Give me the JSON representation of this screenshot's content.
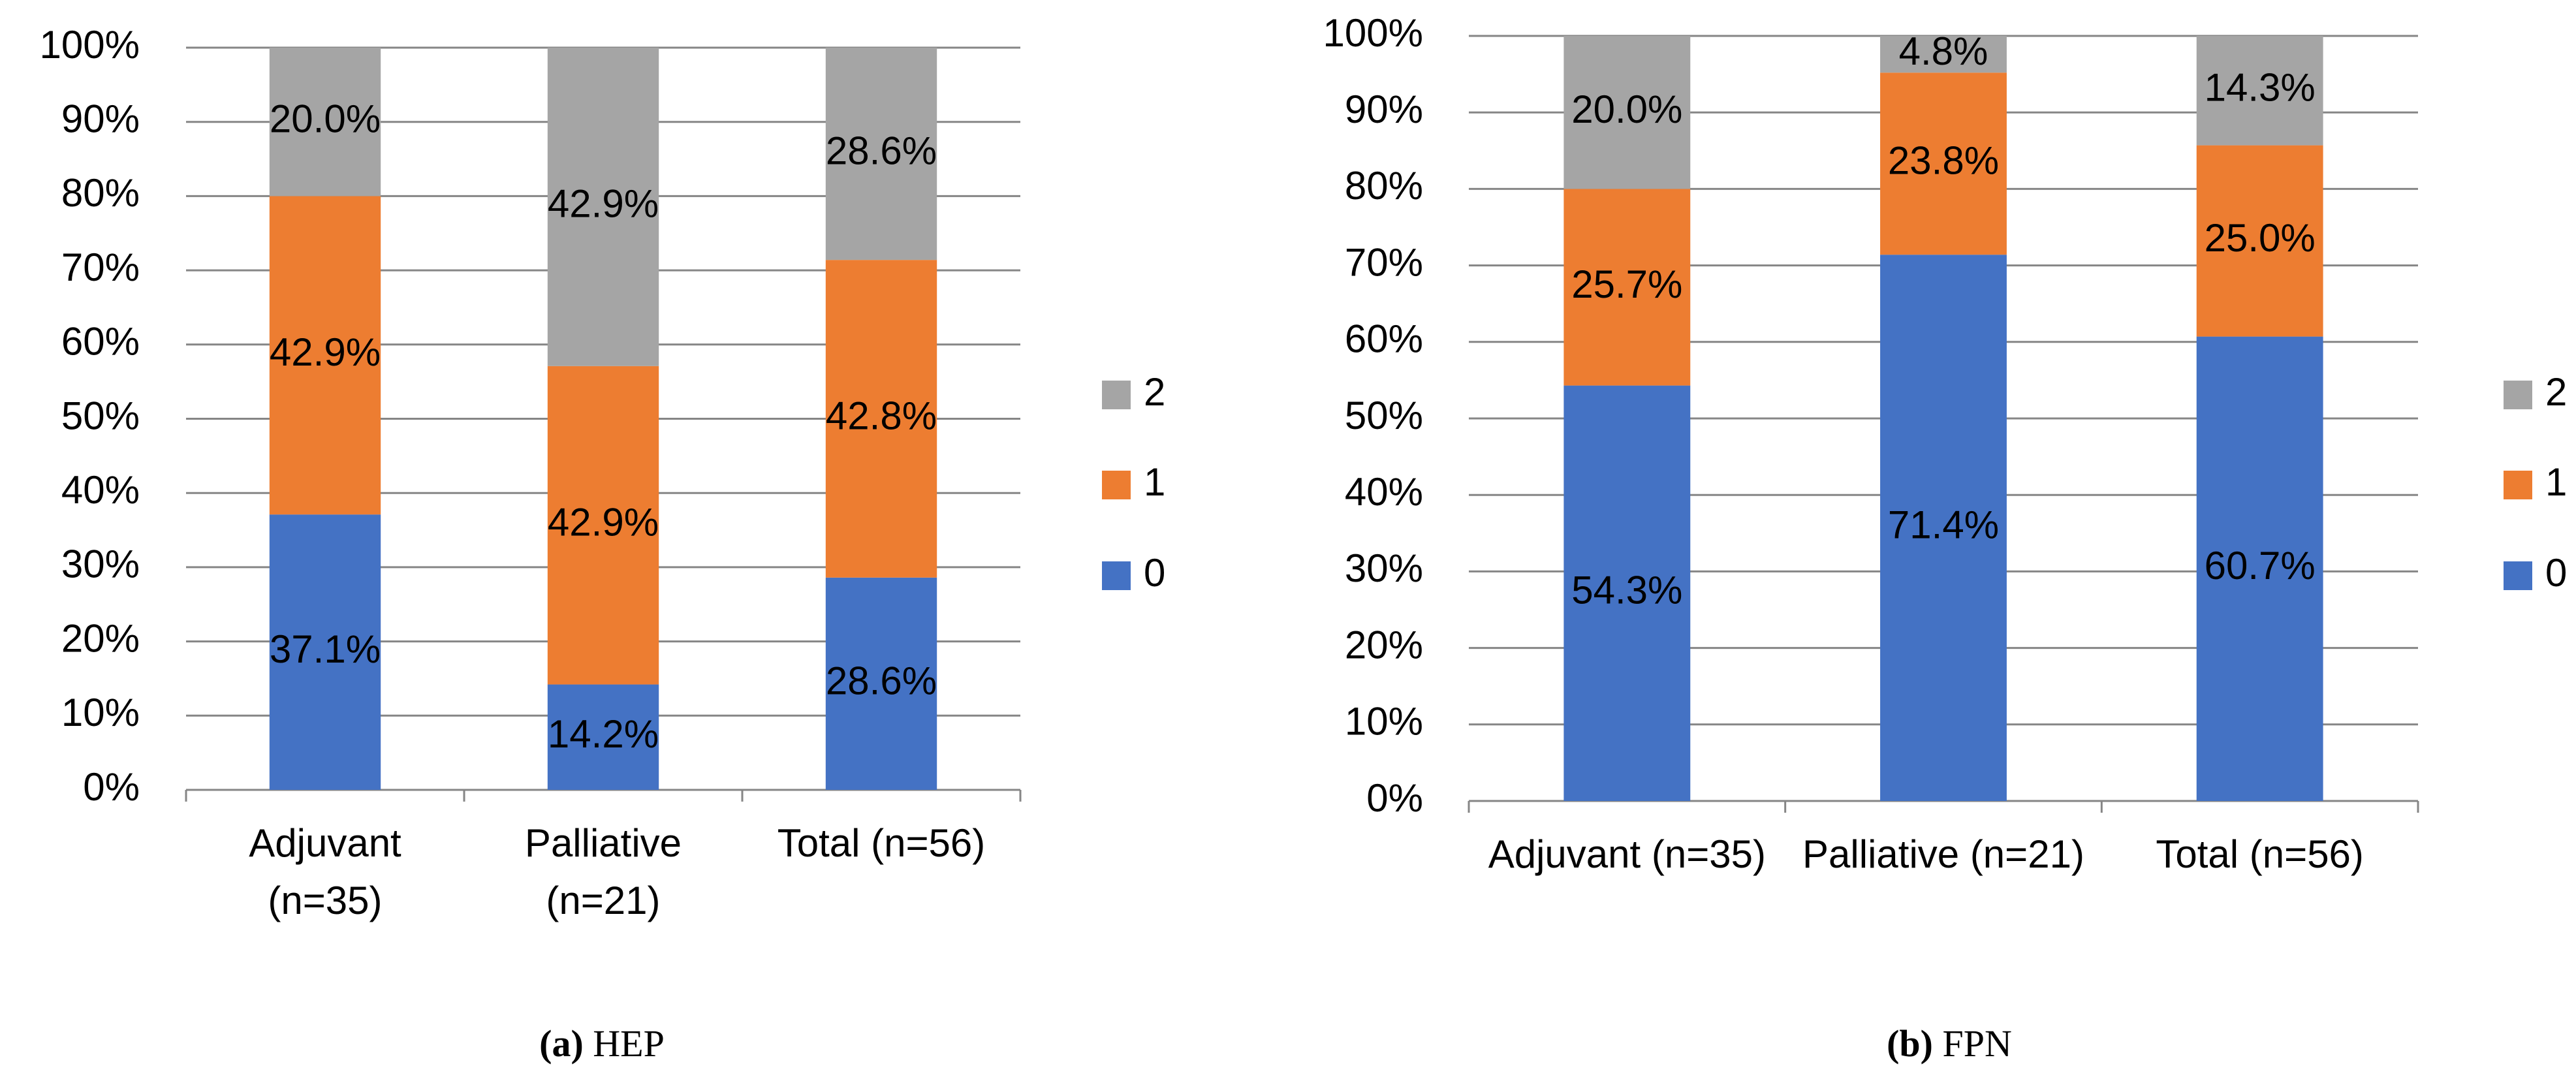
{
  "chart_data": [
    {
      "type": "bar",
      "stacked": true,
      "caption_label": "(a)",
      "caption": "HEP",
      "categories": [
        "Adjuvant (n=35)",
        "Palliative (n=21)",
        "Total (n=56)"
      ],
      "series": [
        {
          "name": "0",
          "color": "#4472c4",
          "values": [
            37.1,
            14.2,
            28.6
          ],
          "value_labels": [
            "37.1%",
            "14.2%",
            "28.6%"
          ]
        },
        {
          "name": "1",
          "color": "#ed7d31",
          "values": [
            42.9,
            42.9,
            42.8
          ],
          "value_labels": [
            "42.9%",
            "42.9%",
            "42.8%"
          ]
        },
        {
          "name": "2",
          "color": "#a5a5a5",
          "values": [
            20.0,
            42.9,
            28.6
          ],
          "value_labels": [
            "20.0%",
            "42.9%",
            "28.6%"
          ]
        }
      ],
      "ylim": [
        0,
        100
      ],
      "yticks": [
        {
          "value": 0,
          "label": "0%"
        },
        {
          "value": 10,
          "label": "10%"
        },
        {
          "value": 20,
          "label": "20%"
        },
        {
          "value": 30,
          "label": "30%"
        },
        {
          "value": 40,
          "label": "40%"
        },
        {
          "value": 50,
          "label": "50%"
        },
        {
          "value": 60,
          "label": "60%"
        },
        {
          "value": 70,
          "label": "70%"
        },
        {
          "value": 80,
          "label": "80%"
        },
        {
          "value": 90,
          "label": "90%"
        },
        {
          "value": 100,
          "label": "100%"
        }
      ],
      "grid": true,
      "legend": "right"
    },
    {
      "type": "bar",
      "stacked": true,
      "caption_label": "(b)",
      "caption": "FPN",
      "categories": [
        "Adjuvant (n=35)",
        "Palliative (n=21)",
        "Total (n=56)"
      ],
      "series": [
        {
          "name": "0",
          "color": "#4472c4",
          "values": [
            54.3,
            71.4,
            60.7
          ],
          "value_labels": [
            "54.3%",
            "71.4%",
            "60.7%"
          ]
        },
        {
          "name": "1",
          "color": "#ed7d31",
          "values": [
            25.7,
            23.8,
            25.0
          ],
          "value_labels": [
            "25.7%",
            "23.8%",
            "25.0%"
          ]
        },
        {
          "name": "2",
          "color": "#a5a5a5",
          "values": [
            20.0,
            4.8,
            14.3
          ],
          "value_labels": [
            "20.0%",
            "4.8%",
            "14.3%"
          ]
        }
      ],
      "ylim": [
        0,
        100
      ],
      "yticks": [
        {
          "value": 0,
          "label": "0%"
        },
        {
          "value": 10,
          "label": "10%"
        },
        {
          "value": 20,
          "label": "20%"
        },
        {
          "value": 30,
          "label": "30%"
        },
        {
          "value": 40,
          "label": "40%"
        },
        {
          "value": 50,
          "label": "50%"
        },
        {
          "value": 60,
          "label": "60%"
        },
        {
          "value": 70,
          "label": "70%"
        },
        {
          "value": 80,
          "label": "80%"
        },
        {
          "value": 90,
          "label": "90%"
        },
        {
          "value": 100,
          "label": "100%"
        }
      ],
      "grid": true,
      "legend": "right"
    }
  ]
}
